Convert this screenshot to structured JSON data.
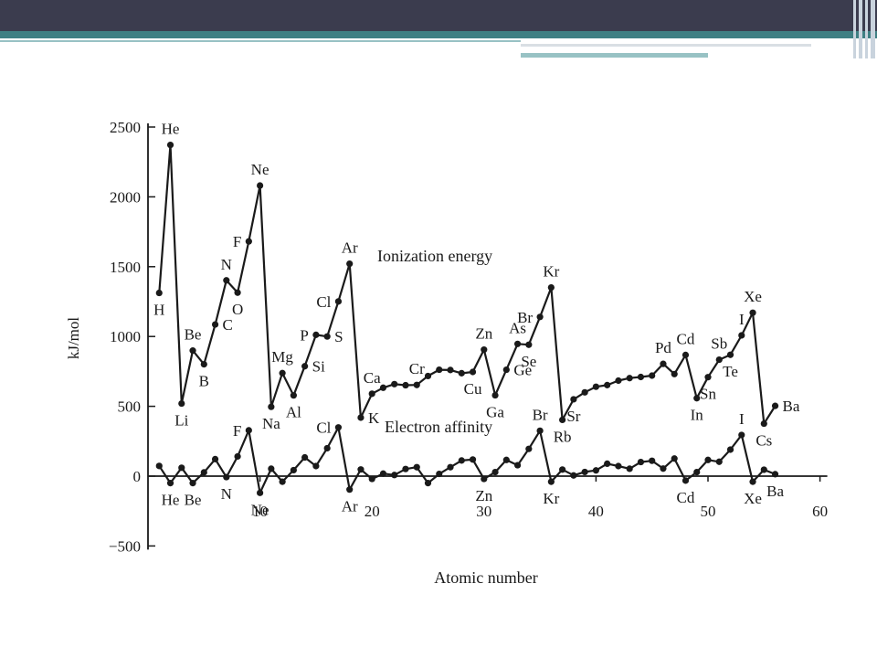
{
  "chart_data": {
    "type": "line",
    "xlabel": "Atomic number",
    "ylabel": "kJ/mol",
    "xlim": [
      0,
      60
    ],
    "ylim": [
      -500,
      2500
    ],
    "x_ticks": [
      10,
      20,
      30,
      40,
      50,
      60
    ],
    "y_ticks": [
      2500,
      2000,
      1500,
      1000,
      500,
      0,
      -500
    ],
    "grid": false,
    "series": [
      {
        "name": "Ionization energy",
        "x": [
          1,
          2,
          3,
          4,
          5,
          6,
          7,
          8,
          9,
          10,
          11,
          12,
          13,
          14,
          15,
          16,
          17,
          18,
          19,
          20,
          21,
          22,
          23,
          24,
          25,
          26,
          27,
          28,
          29,
          30,
          31,
          32,
          33,
          34,
          35,
          36,
          37,
          38,
          39,
          40,
          41,
          42,
          43,
          44,
          45,
          46,
          47,
          48,
          49,
          50,
          51,
          52,
          53,
          54,
          55,
          56
        ],
        "y": [
          1312,
          2372,
          520,
          899,
          801,
          1086,
          1402,
          1314,
          1681,
          2081,
          496,
          738,
          578,
          787,
          1012,
          1000,
          1251,
          1521,
          419,
          590,
          633,
          659,
          651,
          653,
          717,
          762,
          760,
          737,
          746,
          906,
          579,
          762,
          947,
          941,
          1140,
          1351,
          403,
          550,
          600,
          640,
          652,
          684,
          702,
          710,
          720,
          804,
          731,
          868,
          558,
          709,
          834,
          869,
          1008,
          1170,
          376,
          503
        ],
        "labels": [
          {
            "x": 1,
            "text": "H",
            "pos": "below"
          },
          {
            "x": 2,
            "text": "He",
            "pos": "above"
          },
          {
            "x": 3,
            "text": "Li",
            "pos": "below"
          },
          {
            "x": 4,
            "text": "Be",
            "pos": "above"
          },
          {
            "x": 5,
            "text": "B",
            "pos": "below"
          },
          {
            "x": 6,
            "text": "C",
            "pos": "right"
          },
          {
            "x": 7,
            "text": "N",
            "pos": "above"
          },
          {
            "x": 8,
            "text": "O",
            "pos": "below"
          },
          {
            "x": 9,
            "text": "F",
            "pos": "left"
          },
          {
            "x": 10,
            "text": "Ne",
            "pos": "above"
          },
          {
            "x": 11,
            "text": "Na",
            "pos": "below"
          },
          {
            "x": 12,
            "text": "Mg",
            "pos": "above"
          },
          {
            "x": 13,
            "text": "Al",
            "pos": "below"
          },
          {
            "x": 14,
            "text": "Si",
            "pos": "right"
          },
          {
            "x": 15,
            "text": "P",
            "pos": "left"
          },
          {
            "x": 16,
            "text": "S",
            "pos": "right"
          },
          {
            "x": 17,
            "text": "Cl",
            "pos": "left"
          },
          {
            "x": 18,
            "text": "Ar",
            "pos": "above"
          },
          {
            "x": 19,
            "text": "K",
            "pos": "right"
          },
          {
            "x": 20,
            "text": "Ca",
            "pos": "above"
          },
          {
            "x": 24,
            "text": "Cr",
            "pos": "above"
          },
          {
            "x": 29,
            "text": "Cu",
            "pos": "below"
          },
          {
            "x": 30,
            "text": "Zn",
            "pos": "above"
          },
          {
            "x": 31,
            "text": "Ga",
            "pos": "below"
          },
          {
            "x": 32,
            "text": "Ge",
            "pos": "right"
          },
          {
            "x": 33,
            "text": "As",
            "pos": "above"
          },
          {
            "x": 34,
            "text": "Se",
            "pos": "below"
          },
          {
            "x": 35,
            "text": "Br",
            "pos": "left"
          },
          {
            "x": 36,
            "text": "Kr",
            "pos": "above"
          },
          {
            "x": 37,
            "text": "Rb",
            "pos": "below"
          },
          {
            "x": 38,
            "text": "Sr",
            "pos": "below"
          },
          {
            "x": 46,
            "text": "Pd",
            "pos": "above"
          },
          {
            "x": 48,
            "text": "Cd",
            "pos": "above"
          },
          {
            "x": 49,
            "text": "In",
            "pos": "below"
          },
          {
            "x": 50,
            "text": "Sn",
            "pos": "below"
          },
          {
            "x": 51,
            "text": "Sb",
            "pos": "above"
          },
          {
            "x": 52,
            "text": "Te",
            "pos": "below"
          },
          {
            "x": 53,
            "text": "I",
            "pos": "above"
          },
          {
            "x": 54,
            "text": "Xe",
            "pos": "above"
          },
          {
            "x": 55,
            "text": "Cs",
            "pos": "below"
          },
          {
            "x": 56,
            "text": "Ba",
            "pos": "right"
          }
        ]
      },
      {
        "name": "Electron affinity",
        "x": [
          1,
          2,
          3,
          4,
          5,
          6,
          7,
          8,
          9,
          10,
          11,
          12,
          13,
          14,
          15,
          16,
          17,
          18,
          19,
          20,
          21,
          22,
          23,
          24,
          25,
          26,
          27,
          28,
          29,
          30,
          31,
          32,
          33,
          34,
          35,
          36,
          37,
          38,
          39,
          40,
          41,
          42,
          43,
          44,
          45,
          46,
          47,
          48,
          49,
          50,
          51,
          52,
          53,
          54,
          55,
          56
        ],
        "y": [
          73,
          -50,
          60,
          -50,
          27,
          122,
          -7,
          141,
          328,
          -120,
          53,
          -40,
          43,
          134,
          72,
          200,
          349,
          -96,
          48,
          -20,
          18,
          8,
          51,
          64,
          -50,
          16,
          64,
          112,
          119,
          -20,
          29,
          116,
          78,
          195,
          325,
          -40,
          47,
          5,
          30,
          41,
          89,
          72,
          53,
          101,
          110,
          54,
          126,
          -32,
          29,
          116,
          103,
          190,
          295,
          -40,
          46,
          14
        ],
        "labels": [
          {
            "x": 2,
            "text": "He",
            "pos": "below"
          },
          {
            "x": 4,
            "text": "Be",
            "pos": "below"
          },
          {
            "x": 7,
            "text": "N",
            "pos": "below"
          },
          {
            "x": 9,
            "text": "F",
            "pos": "left"
          },
          {
            "x": 10,
            "text": "Ne",
            "pos": "below"
          },
          {
            "x": 17,
            "text": "Cl",
            "pos": "left"
          },
          {
            "x": 18,
            "text": "Ar",
            "pos": "below"
          },
          {
            "x": 30,
            "text": "Zn",
            "pos": "below"
          },
          {
            "x": 35,
            "text": "Br",
            "pos": "above"
          },
          {
            "x": 36,
            "text": "Kr",
            "pos": "below"
          },
          {
            "x": 48,
            "text": "Cd",
            "pos": "below"
          },
          {
            "x": 53,
            "text": "I",
            "pos": "above"
          },
          {
            "x": 54,
            "text": "Xe",
            "pos": "below"
          },
          {
            "x": 56,
            "text": "Ba",
            "pos": "below"
          }
        ]
      }
    ],
    "colors": {
      "line": "#1a1a1a",
      "marker": "#1a1a1a"
    }
  },
  "theme": {
    "topbar": "#3b3c4e",
    "accent": "#3f7f83",
    "accent_light": "#98c2c4"
  }
}
